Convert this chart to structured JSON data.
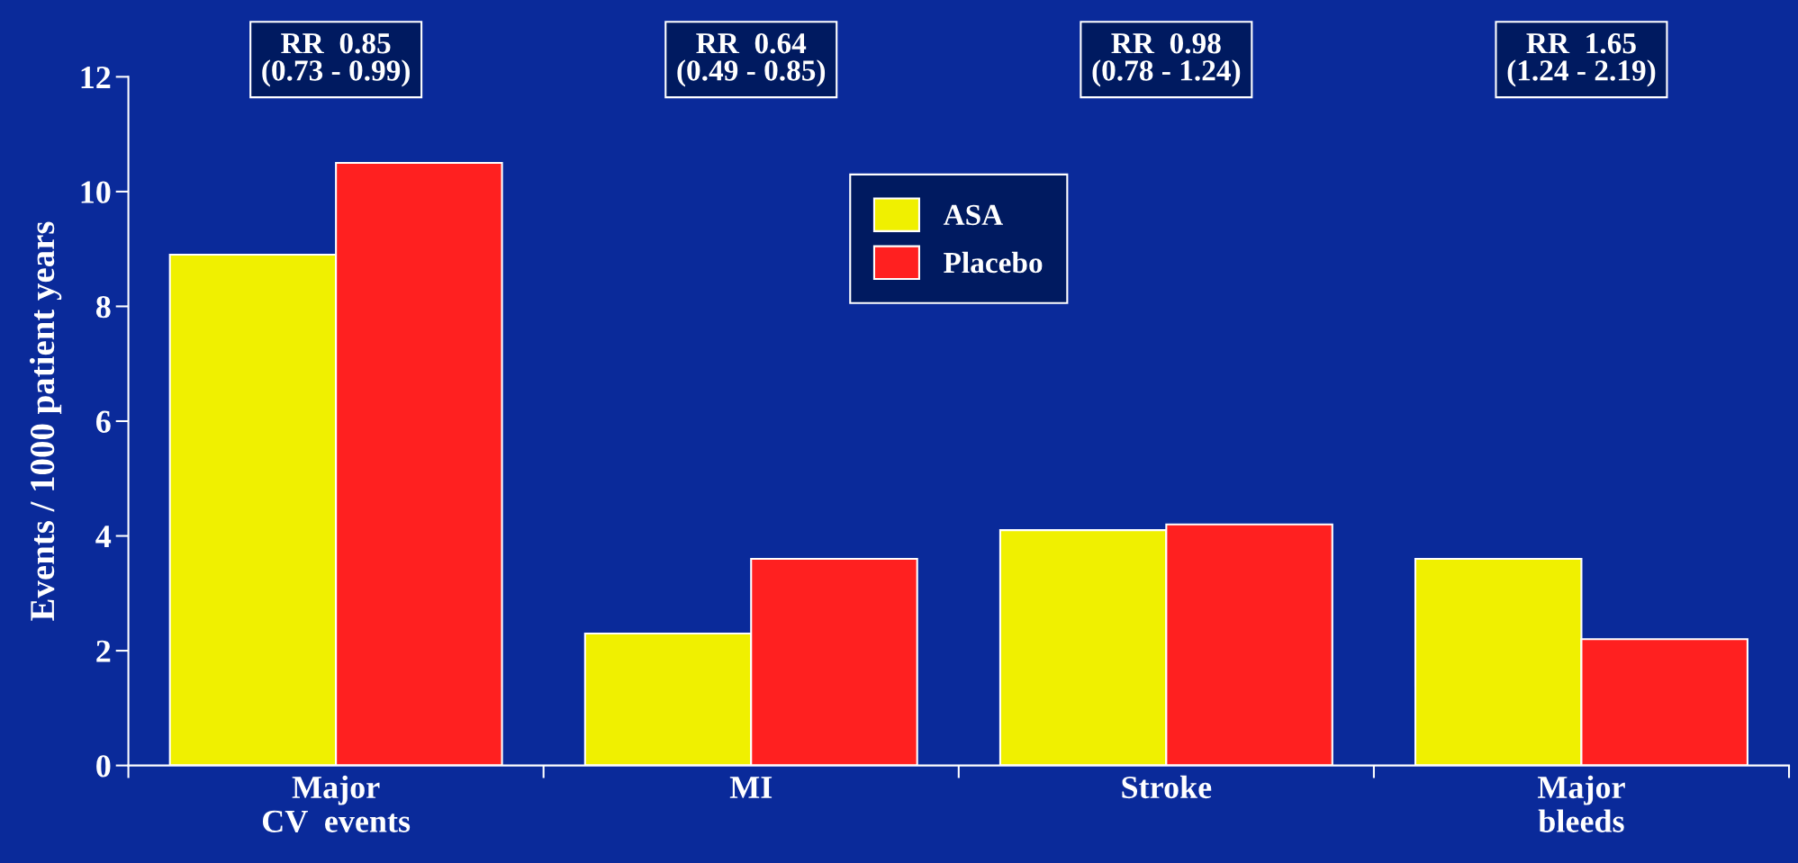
{
  "chart_data": {
    "type": "bar",
    "ylabel": "Events / 1000 patient years",
    "categories": [
      "Major\nCV  events",
      "MI",
      "Stroke",
      "Major\nbleeds"
    ],
    "series": [
      {
        "name": "ASA",
        "color": "#f0f000",
        "values": [
          8.9,
          2.3,
          4.1,
          3.6
        ]
      },
      {
        "name": "Placebo",
        "color": "#ff2020",
        "values": [
          10.5,
          3.6,
          4.2,
          2.2
        ]
      }
    ],
    "ylim": [
      0,
      12
    ],
    "yticks": [
      0,
      2,
      4,
      6,
      8,
      10,
      12
    ],
    "legend": "top",
    "grid": false,
    "annotations": [
      "RR  0.85\n(0.73 - 0.99)",
      "RR  0.64\n(0.49 - 0.85)",
      "RR  0.98\n(0.78 - 1.24)",
      "RR  1.65\n(1.24 - 2.19)"
    ]
  }
}
